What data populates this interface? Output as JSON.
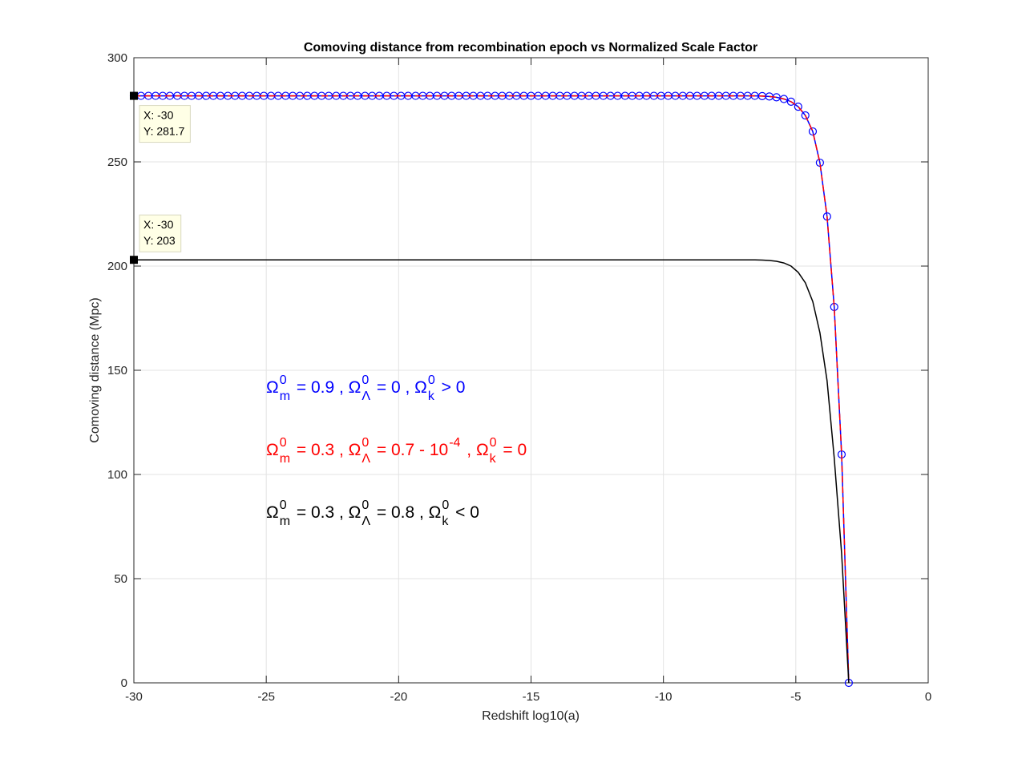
{
  "chart_data": {
    "type": "line",
    "title": "Comoving distance from recombination epoch vs Normalized Scale Factor",
    "xlabel": "Redshift log10(a)",
    "ylabel": "Comoving distance (Mpc)",
    "xlim": [
      -30,
      0
    ],
    "xticks": [
      -30,
      -25,
      -20,
      -15,
      -10,
      -5,
      0
    ],
    "ylim": [
      0,
      300
    ],
    "yticks": [
      0,
      50,
      100,
      150,
      200,
      250,
      300
    ],
    "grid": true,
    "x": [
      -30,
      -29.73,
      -29.45,
      -29.18,
      -28.91,
      -28.64,
      -28.36,
      -28.09,
      -27.82,
      -27.55,
      -27.27,
      -27,
      -26.73,
      -26.45,
      -26.18,
      -25.91,
      -25.64,
      -25.36,
      -25.09,
      -24.82,
      -24.55,
      -24.27,
      -24,
      -23.73,
      -23.45,
      -23.18,
      -22.91,
      -22.64,
      -22.36,
      -22.09,
      -21.82,
      -21.55,
      -21.27,
      -21,
      -20.73,
      -20.45,
      -20.18,
      -19.91,
      -19.64,
      -19.36,
      -19.09,
      -18.82,
      -18.55,
      -18.27,
      -18,
      -17.73,
      -17.45,
      -17.18,
      -16.91,
      -16.64,
      -16.36,
      -16.09,
      -15.82,
      -15.55,
      -15.27,
      -15,
      -14.73,
      -14.45,
      -14.18,
      -13.91,
      -13.64,
      -13.36,
      -13.09,
      -12.82,
      -12.55,
      -12.27,
      -12,
      -11.73,
      -11.45,
      -11.18,
      -10.91,
      -10.64,
      -10.36,
      -10.09,
      -9.82,
      -9.55,
      -9.27,
      -9,
      -8.73,
      -8.45,
      -8.18,
      -7.91,
      -7.64,
      -7.36,
      -7.09,
      -6.82,
      -6.55,
      -6.27,
      -6,
      -5.73,
      -5.45,
      -5.18,
      -4.91,
      -4.64,
      -4.36,
      -4.09,
      -3.82,
      -3.55,
      -3.27,
      -3
    ],
    "series": [
      {
        "color": "#0000ff",
        "style": "circle",
        "values": [
          281.7,
          281.7,
          281.7,
          281.7,
          281.7,
          281.7,
          281.7,
          281.7,
          281.7,
          281.7,
          281.7,
          281.7,
          281.7,
          281.7,
          281.7,
          281.7,
          281.7,
          281.7,
          281.7,
          281.7,
          281.7,
          281.7,
          281.7,
          281.7,
          281.7,
          281.7,
          281.7,
          281.7,
          281.7,
          281.7,
          281.7,
          281.7,
          281.7,
          281.7,
          281.7,
          281.7,
          281.7,
          281.7,
          281.7,
          281.7,
          281.7,
          281.7,
          281.7,
          281.7,
          281.7,
          281.7,
          281.7,
          281.7,
          281.7,
          281.7,
          281.7,
          281.7,
          281.7,
          281.7,
          281.7,
          281.7,
          281.7,
          281.7,
          281.7,
          281.7,
          281.7,
          281.7,
          281.7,
          281.7,
          281.7,
          281.7,
          281.7,
          281.7,
          281.7,
          281.7,
          281.7,
          281.7,
          281.7,
          281.7,
          281.7,
          281.7,
          281.7,
          281.7,
          281.7,
          281.7,
          281.7,
          281.7,
          281.7,
          281.7,
          281.7,
          281.7,
          281.7,
          281.6,
          281.4,
          281.0,
          280.2,
          278.9,
          276.5,
          272.3,
          264.6,
          249.6,
          223.8,
          180.4,
          109.6,
          0
        ]
      },
      {
        "color": "#ff0000",
        "style": "dashed",
        "values": [
          281.7,
          281.7,
          281.7,
          281.7,
          281.7,
          281.7,
          281.7,
          281.7,
          281.7,
          281.7,
          281.7,
          281.7,
          281.7,
          281.7,
          281.7,
          281.7,
          281.7,
          281.7,
          281.7,
          281.7,
          281.7,
          281.7,
          281.7,
          281.7,
          281.7,
          281.7,
          281.7,
          281.7,
          281.7,
          281.7,
          281.7,
          281.7,
          281.7,
          281.7,
          281.7,
          281.7,
          281.7,
          281.7,
          281.7,
          281.7,
          281.7,
          281.7,
          281.7,
          281.7,
          281.7,
          281.7,
          281.7,
          281.7,
          281.7,
          281.7,
          281.7,
          281.7,
          281.7,
          281.7,
          281.7,
          281.7,
          281.7,
          281.7,
          281.7,
          281.7,
          281.7,
          281.7,
          281.7,
          281.7,
          281.7,
          281.7,
          281.7,
          281.7,
          281.7,
          281.7,
          281.7,
          281.7,
          281.7,
          281.7,
          281.7,
          281.7,
          281.7,
          281.7,
          281.7,
          281.7,
          281.7,
          281.7,
          281.7,
          281.7,
          281.7,
          281.7,
          281.7,
          281.6,
          281.4,
          281.0,
          280.2,
          278.9,
          276.5,
          272.3,
          264.6,
          249.6,
          223.8,
          180.4,
          109.6,
          0
        ]
      },
      {
        "color": "#000000",
        "style": "solid",
        "values": [
          203,
          203,
          203,
          203,
          203,
          203,
          203,
          203,
          203,
          203,
          203,
          203,
          203,
          203,
          203,
          203,
          203,
          203,
          203,
          203,
          203,
          203,
          203,
          203,
          203,
          203,
          203,
          203,
          203,
          203,
          203,
          203,
          203,
          203,
          203,
          203,
          203,
          203,
          203,
          203,
          203,
          203,
          203,
          203,
          203,
          203,
          203,
          203,
          203,
          203,
          203,
          203,
          203,
          203,
          203,
          203,
          203,
          203,
          203,
          203,
          203,
          203,
          203,
          203,
          203,
          203,
          203,
          203,
          203,
          203,
          203,
          203,
          203,
          203,
          203,
          203,
          203,
          203,
          203,
          203,
          203,
          203,
          203,
          203,
          203,
          203,
          203,
          202.9,
          202.7,
          202.3,
          201.5,
          200,
          197,
          192,
          183,
          168,
          145,
          108,
          62,
          0
        ]
      }
    ],
    "datatips": [
      [
        "X: -30",
        "Y: 281.7"
      ],
      [
        "X: -30",
        "Y: 203"
      ]
    ],
    "annotations": [
      {
        "color": "#0000ff",
        "segments": [
          "Ω",
          {
            "sup": "0",
            "sub": "m"
          },
          " = 0.9 , Ω",
          {
            "sup": "0",
            "sub": "Λ"
          },
          " = 0 , Ω",
          {
            "sup": "0",
            "sub": "k"
          },
          " > 0"
        ]
      },
      {
        "color": "#ff0000",
        "segments": [
          "Ω",
          {
            "sup": "0",
            "sub": "m"
          },
          " = 0.3 , Ω",
          {
            "sup": "0",
            "sub": "Λ"
          },
          " = 0.7 - 10",
          {
            "sup": "-4"
          },
          " , Ω",
          {
            "sup": "0",
            "sub": "k"
          },
          " = 0"
        ]
      },
      {
        "color": "#000000",
        "segments": [
          "Ω",
          {
            "sup": "0",
            "sub": "m"
          },
          " = 0.3 , Ω",
          {
            "sup": "0",
            "sub": "Λ"
          },
          " = 0.8 , Ω",
          {
            "sup": "0",
            "sub": "k"
          },
          " < 0"
        ]
      }
    ]
  }
}
